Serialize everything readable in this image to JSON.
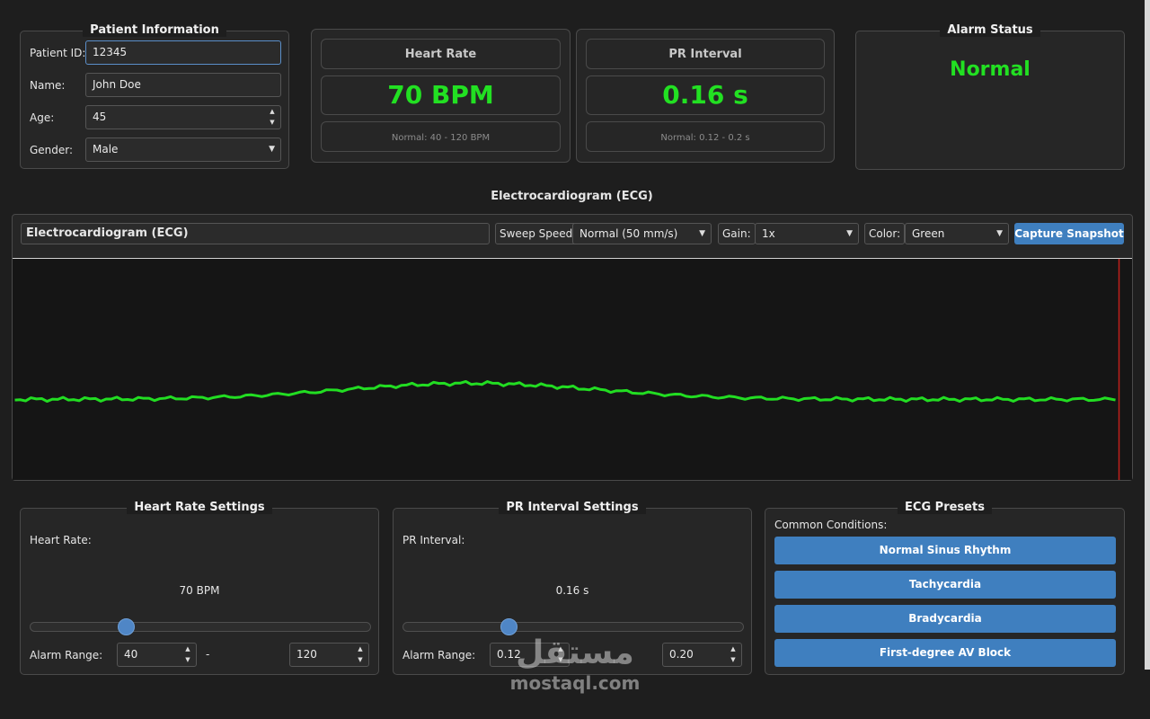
{
  "patient": {
    "title": "Patient Information",
    "id_label": "Patient ID:",
    "id_value": "12345",
    "name_label": "Name:",
    "name_value": "John Doe",
    "age_label": "Age:",
    "age_value": "45",
    "gender_label": "Gender:",
    "gender_value": "Male"
  },
  "heart_rate_card": {
    "title": "Heart Rate",
    "value": "70 BPM",
    "normal": "Normal: 40 - 120 BPM"
  },
  "pr_card": {
    "title": "PR Interval",
    "value": "0.16 s",
    "normal": "Normal: 0.12 - 0.2 s"
  },
  "alarm": {
    "title": "Alarm Status",
    "status": "Normal"
  },
  "ecg": {
    "section_title": "Electrocardiogram (ECG)",
    "panel_title": "Electrocardiogram (ECG)",
    "sweep_label": "Sweep Speed:",
    "sweep_value": "Normal (50 mm/s)",
    "gain_label": "Gain:",
    "gain_value": "1x",
    "color_label": "Color:",
    "color_value": "Green",
    "capture_label": "Capture Snapshot",
    "trace_color": "#22dd22",
    "sweep_line_color": "#c0201c"
  },
  "hr_settings": {
    "title": "Heart Rate Settings",
    "label": "Heart Rate:",
    "value_text": "70 BPM",
    "slider_fraction": 0.28,
    "alarm_label": "Alarm Range:",
    "alarm_low": "40",
    "dash": "-",
    "alarm_high": "120"
  },
  "pr_settings": {
    "title": "PR Interval Settings",
    "label": "PR Interval:",
    "value_text": "0.16 s",
    "slider_fraction": 0.31,
    "alarm_label": "Alarm Range:",
    "alarm_low": "0.12",
    "alarm_high": "0.20"
  },
  "presets": {
    "title": "ECG Presets",
    "subtitle": "Common Conditions:",
    "items": [
      {
        "label": "Normal Sinus Rhythm"
      },
      {
        "label": "Tachycardia"
      },
      {
        "label": "Bradycardia"
      },
      {
        "label": "First-degree AV Block"
      }
    ]
  },
  "watermark": {
    "arabic": "مستقل",
    "latin": "mostaql.com"
  },
  "colors": {
    "accent": "#3f7fbf",
    "value_green": "#22e022",
    "background": "#1e1e1e"
  }
}
